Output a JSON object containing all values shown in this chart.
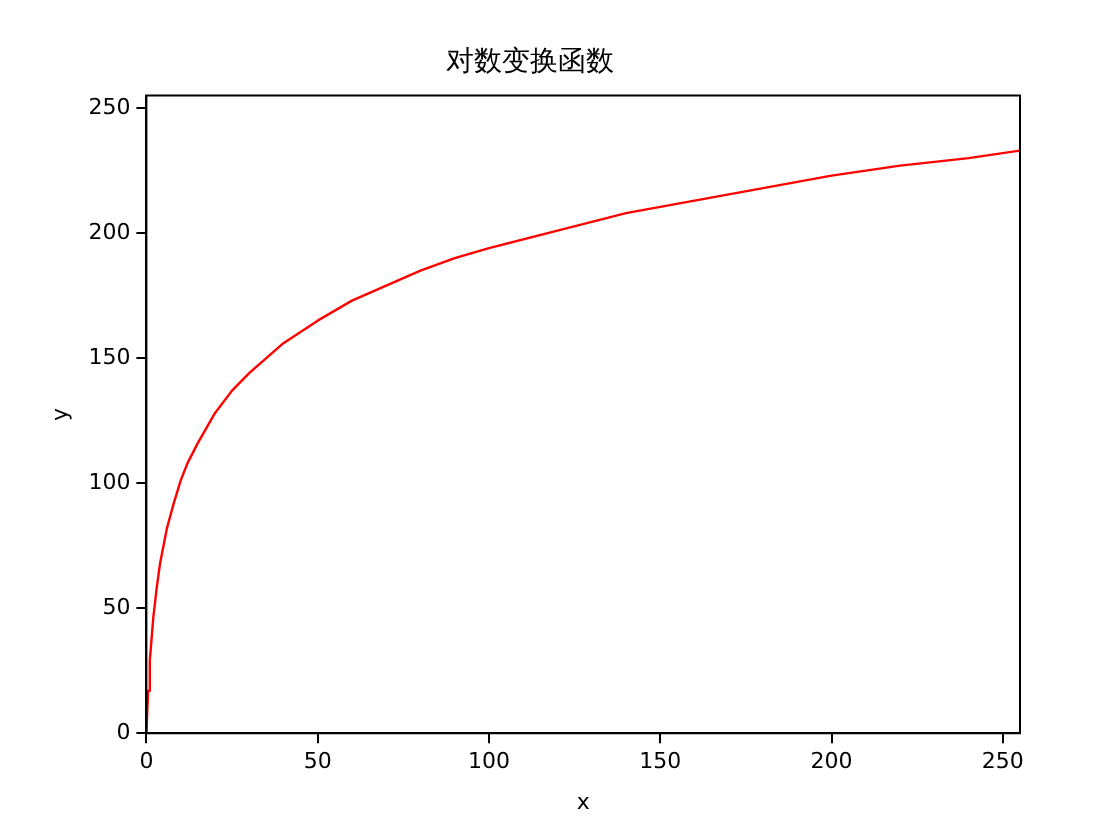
{
  "chart_data": {
    "type": "line",
    "title": "对数变换函数",
    "xlabel": "x",
    "ylabel": "y",
    "x": [
      0,
      0.5,
      1,
      2,
      3,
      4,
      5,
      6,
      8,
      10,
      12,
      15,
      20,
      25,
      30,
      35,
      40,
      50,
      60,
      70,
      80,
      90,
      100,
      120,
      140,
      160,
      180,
      200,
      220,
      240,
      255
    ],
    "series": [
      {
        "color": "#ff0000",
        "values": [
          0,
          17,
          29,
          46,
          58,
          68,
          75,
          82,
          92,
          101,
          108,
          116,
          128,
          137,
          144,
          150,
          156,
          165,
          173,
          179,
          185,
          190,
          194,
          201,
          208,
          213,
          218,
          223,
          227,
          230,
          233
        ]
      }
    ],
    "xlim": [
      0,
      255
    ],
    "xticks": [
      0,
      50,
      100,
      150,
      200,
      250
    ],
    "ylim": [
      0,
      255
    ],
    "yticks": [
      0,
      50,
      100,
      150,
      200,
      250
    ],
    "grid": false,
    "legend": false,
    "marker": "none",
    "line_style": "solid"
  }
}
